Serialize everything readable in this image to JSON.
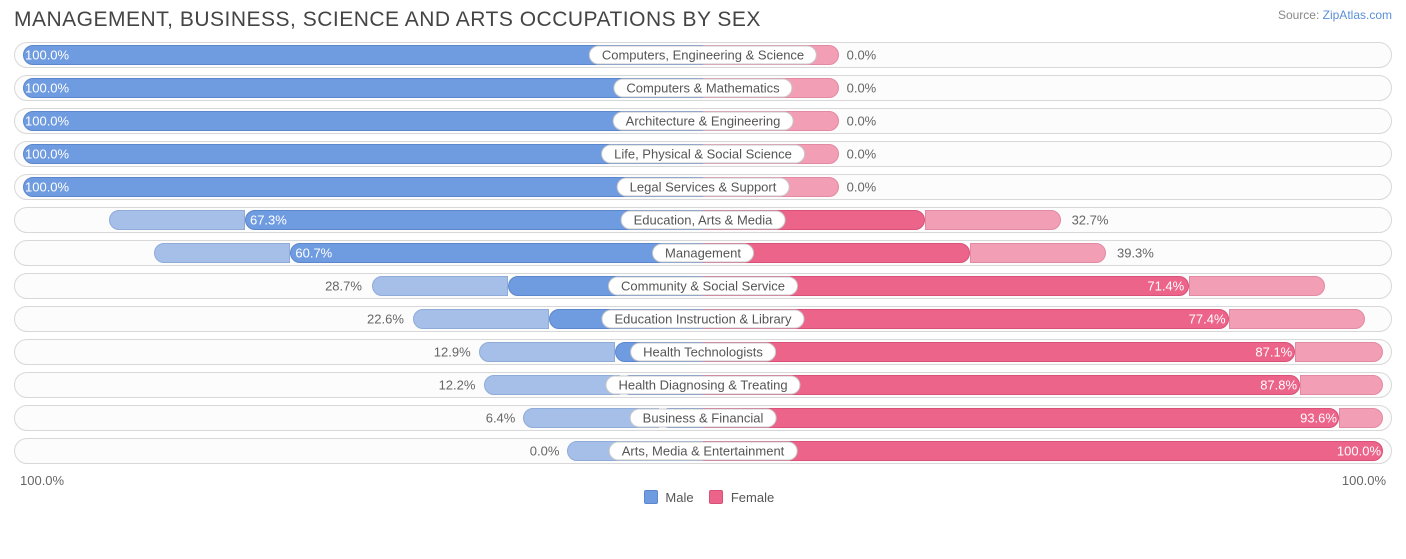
{
  "title": "MANAGEMENT, BUSINESS, SCIENCE AND ARTS OCCUPATIONS BY SEX",
  "source_label": "Source:",
  "source_name": "ZipAtlas.com",
  "axis_left": "100.0%",
  "axis_right": "100.0%",
  "legend": {
    "male": "Male",
    "female": "Female"
  },
  "colors": {
    "male": "#6f9be0",
    "male_border": "#5b86cc",
    "male_pale": "#a5bfe9",
    "female": "#ec6489",
    "female_border": "#d95078",
    "female_pale": "#f29eb5",
    "row_border": "#d8d8d8",
    "text": "#666666",
    "title": "#444444",
    "background": "#ffffff"
  },
  "pale_width_pct": 20,
  "rows": [
    {
      "label": "Computers, Engineering & Science",
      "male": 100.0,
      "female": 0.0,
      "male_txt": "100.0%",
      "female_txt": "0.0%"
    },
    {
      "label": "Computers & Mathematics",
      "male": 100.0,
      "female": 0.0,
      "male_txt": "100.0%",
      "female_txt": "0.0%"
    },
    {
      "label": "Architecture & Engineering",
      "male": 100.0,
      "female": 0.0,
      "male_txt": "100.0%",
      "female_txt": "0.0%"
    },
    {
      "label": "Life, Physical & Social Science",
      "male": 100.0,
      "female": 0.0,
      "male_txt": "100.0%",
      "female_txt": "0.0%"
    },
    {
      "label": "Legal Services & Support",
      "male": 100.0,
      "female": 0.0,
      "male_txt": "100.0%",
      "female_txt": "0.0%"
    },
    {
      "label": "Education, Arts & Media",
      "male": 67.3,
      "female": 32.7,
      "male_txt": "67.3%",
      "female_txt": "32.7%"
    },
    {
      "label": "Management",
      "male": 60.7,
      "female": 39.3,
      "male_txt": "60.7%",
      "female_txt": "39.3%"
    },
    {
      "label": "Community & Social Service",
      "male": 28.7,
      "female": 71.4,
      "male_txt": "28.7%",
      "female_txt": "71.4%"
    },
    {
      "label": "Education Instruction & Library",
      "male": 22.6,
      "female": 77.4,
      "male_txt": "22.6%",
      "female_txt": "77.4%"
    },
    {
      "label": "Health Technologists",
      "male": 12.9,
      "female": 87.1,
      "male_txt": "12.9%",
      "female_txt": "87.1%"
    },
    {
      "label": "Health Diagnosing & Treating",
      "male": 12.2,
      "female": 87.8,
      "male_txt": "12.2%",
      "female_txt": "87.8%"
    },
    {
      "label": "Business & Financial",
      "male": 6.4,
      "female": 93.6,
      "male_txt": "6.4%",
      "female_txt": "93.6%"
    },
    {
      "label": "Arts, Media & Entertainment",
      "male": 0.0,
      "female": 100.0,
      "male_txt": "0.0%",
      "female_txt": "100.0%"
    }
  ]
}
